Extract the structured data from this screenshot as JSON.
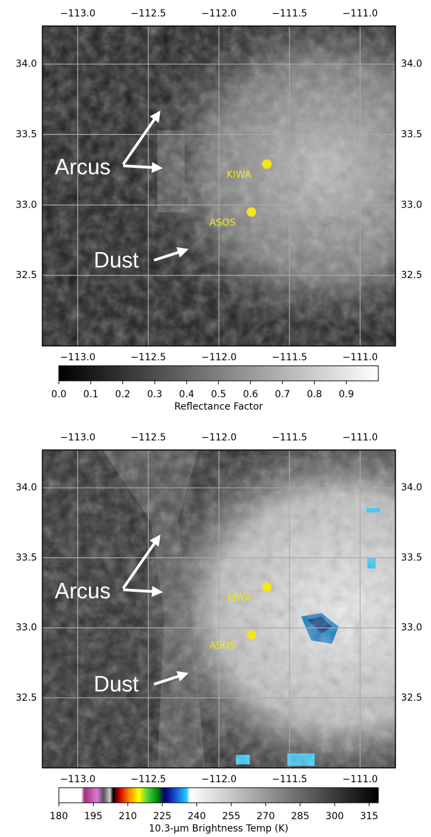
{
  "panels": [
    {
      "lonlim": [
        -113.25,
        -110.75
      ],
      "latlim": [
        32.0,
        34.27
      ],
      "lon_ticks": [
        {
          "value": -113.0,
          "label": "−113.0"
        },
        {
          "value": -112.5,
          "label": "−112.5"
        },
        {
          "value": -112.0,
          "label": "−112.0"
        },
        {
          "value": -111.5,
          "label": "−111.5"
        },
        {
          "value": -111.0,
          "label": "−111.0"
        }
      ],
      "lat_ticks": [
        32.5,
        {
          "value": 33.0,
          "label": "33.0"
        },
        33.5,
        {
          "value": 34.0,
          "label": "34.0"
        }
      ],
      "annotations": [
        "Arcus",
        "Dust"
      ],
      "stations": [
        {
          "name": "KIWA",
          "lon": -111.66,
          "lat": 33.29
        },
        {
          "name": "ASOS",
          "lon": -111.77,
          "lat": 32.95
        }
      ],
      "colorbar": {
        "label": "Reflectance Factor",
        "lim": [
          0,
          1
        ],
        "ticks": [
          {
            "value": 0,
            "label": "0.0"
          },
          0.1,
          0.2,
          0.3,
          0.4,
          0.5,
          0.6,
          0.7,
          0.8,
          0.9
        ]
      }
    },
    {
      "lonlim": [
        -113.25,
        -110.75
      ],
      "latlim": [
        32.0,
        34.27
      ],
      "lon_ticks": [
        {
          "value": -113.0,
          "label": "−113.0"
        },
        {
          "value": -112.5,
          "label": "−112.5"
        },
        {
          "value": -112.0,
          "label": "−112.0"
        },
        {
          "value": -111.5,
          "label": "−111.5"
        },
        {
          "value": -111.0,
          "label": "−111.0"
        }
      ],
      "lat_ticks": [
        32.5,
        {
          "value": 33.0,
          "label": "33.0"
        },
        33.5,
        {
          "value": 34.0,
          "label": "34.0"
        }
      ],
      "annotations": [
        "Arcus",
        "Dust"
      ],
      "stations": [
        {
          "name": "KIWA",
          "lon": -111.66,
          "lat": 33.29
        },
        {
          "name": "ASOS",
          "lon": -111.77,
          "lat": 32.95
        }
      ],
      "colorbar": {
        "label": "10.3-μm Brightness Temp (K)",
        "lim": [
          180,
          319
        ],
        "ticks": [
          180,
          195,
          210,
          225,
          240,
          255,
          270,
          285,
          300,
          315
        ]
      }
    }
  ]
}
